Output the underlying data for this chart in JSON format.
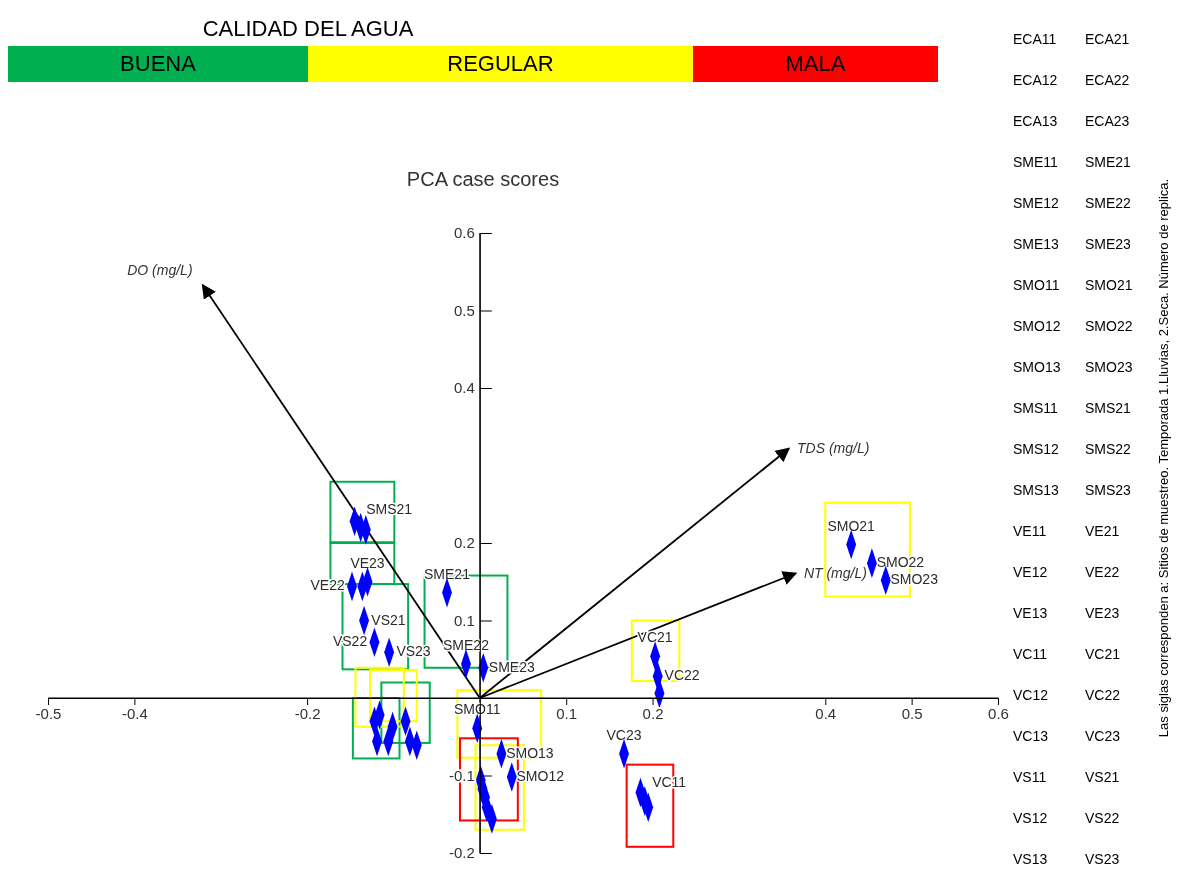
{
  "chart_data": {
    "type": "scatter",
    "title": "PCA case scores",
    "xlim": [
      -0.5,
      0.6
    ],
    "ylim": [
      -0.2,
      0.6
    ],
    "xticks": [
      -0.5,
      -0.4,
      -0.2,
      0.1,
      0.2,
      0.4,
      0.5,
      0.6
    ],
    "yticks": [
      -0.2,
      -0.1,
      0.1,
      0.2,
      0.4,
      0.5,
      0.6
    ],
    "marker": "diamond",
    "grid": false,
    "annotations": [
      "CALIDAD DEL AGUA",
      "BUENA",
      "REGULAR",
      "MALA",
      "Las siglas corresponden a: Sitios de muestreo. Temporada 1.Lluvias, 2.Seca. Número de replica.",
      "ECA11",
      "ECA21",
      "ECA12",
      "ECA22",
      "ECA13",
      "ECA23",
      "SME11",
      "SME21",
      "SME12",
      "SME22",
      "SME13",
      "SME23",
      "SMO11",
      "SMO21",
      "SMO12",
      "SMO22",
      "SMO13",
      "SMO23",
      "SMS11",
      "SMS21",
      "SMS12",
      "SMS22",
      "SMS13",
      "SMS23",
      "VE11",
      "VE21",
      "VE12",
      "VE22",
      "VE13",
      "VE23",
      "VC11",
      "VC21",
      "VC12",
      "VC22",
      "VC13",
      "VC23",
      "VS11",
      "VS21",
      "VS12",
      "VS22",
      "VS13",
      "VS23"
    ],
    "series": [
      {
        "color": "#0000ff",
        "x": [
          0.43,
          0.454,
          0.47,
          0.203,
          0.206,
          0.208,
          0.167,
          0.186,
          0.191,
          0.195,
          -0.038,
          -0.016,
          0.004,
          -0.003,
          0.025,
          0.037,
          -0.145,
          -0.138,
          -0.132,
          -0.148,
          -0.136,
          -0.13,
          -0.134,
          -0.122,
          -0.105,
          0.001,
          0.003,
          0.006,
          0.008,
          0.014,
          -0.122,
          -0.119,
          -0.116,
          -0.106,
          -0.101,
          -0.086,
          -0.081,
          -0.073
        ],
        "values": [
          0.198,
          0.174,
          0.152,
          0.054,
          0.028,
          0.006,
          -0.072,
          -0.122,
          -0.133,
          -0.141,
          0.136,
          0.044,
          0.039,
          -0.039,
          -0.072,
          -0.102,
          0.228,
          0.22,
          0.217,
          0.144,
          0.144,
          0.15,
          0.1,
          0.072,
          0.059,
          -0.106,
          -0.117,
          -0.128,
          -0.141,
          -0.156,
          -0.03,
          -0.056,
          -0.022,
          -0.056,
          -0.037,
          -0.03,
          -0.056,
          -0.061
        ],
        "value_labels": [
          "SMO21",
          "SMO22",
          "SMO23",
          "VC21",
          "VC22",
          null,
          "VC23",
          null,
          "VC11",
          null,
          "SME21",
          "SME22",
          "SME23",
          "SMO11",
          "SMO13",
          "SMO12",
          null,
          "SMS21",
          null,
          "VE22",
          null,
          "VE23",
          "VS21",
          "VS22",
          "VS23",
          null,
          null,
          null,
          null,
          null,
          null,
          null,
          null,
          null,
          null,
          null,
          null,
          null
        ]
      },
      {
        "type": "line",
        "name": "DO (mg/L)",
        "color": "#000000",
        "marker": "none",
        "x": [
          0,
          -0.321
        ],
        "values": [
          0,
          0.533
        ]
      },
      {
        "type": "line",
        "name": "TDS (mg/L)",
        "color": "#000000",
        "marker": "none",
        "x": [
          0,
          0.358
        ],
        "values": [
          0,
          0.322
        ]
      },
      {
        "type": "line",
        "name": "NT (mg/L)",
        "color": "#000000",
        "marker": "none",
        "x": [
          0,
          0.366
        ],
        "values": [
          0,
          0.161
        ]
      }
    ]
  }
}
